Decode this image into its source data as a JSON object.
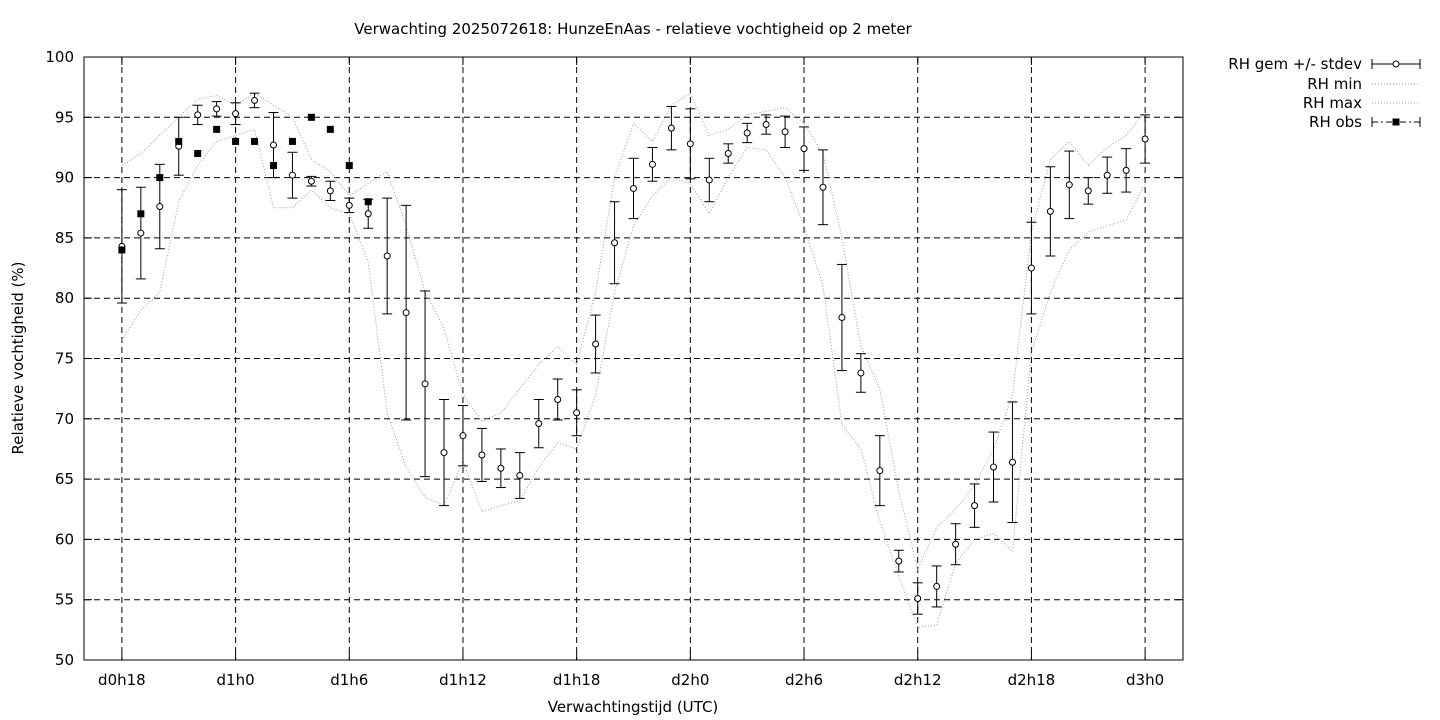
{
  "chart_data": {
    "type": "line",
    "title": "Verwachting 2025072618: HunzeEnAas - relatieve vochtigheid op 2 meter",
    "xlabel": "Verwachtingstijd (UTC)",
    "ylabel": "Relatieve vochtigheid (%)",
    "xlim": [
      -2,
      56
    ],
    "ylim": [
      50,
      100
    ],
    "yticks": [
      50,
      55,
      60,
      65,
      70,
      75,
      80,
      85,
      90,
      95,
      100
    ],
    "xticks": [
      {
        "x": 0,
        "label": "d0h18"
      },
      {
        "x": 6,
        "label": "d1h0"
      },
      {
        "x": 12,
        "label": "d1h6"
      },
      {
        "x": 18,
        "label": "d1h12"
      },
      {
        "x": 24,
        "label": "d1h18"
      },
      {
        "x": 30,
        "label": "d2h0"
      },
      {
        "x": 36,
        "label": "d2h6"
      },
      {
        "x": 42,
        "label": "d2h12"
      },
      {
        "x": 48,
        "label": "d2h18"
      },
      {
        "x": 54,
        "label": "d3h0"
      }
    ],
    "grid": true,
    "legend_position": "outside-top-right",
    "series": [
      {
        "name": "RH gem +/- stdev",
        "style": "errorbars",
        "x": [
          0,
          1,
          2,
          3,
          4,
          5,
          6,
          7,
          8,
          9,
          10,
          11,
          12,
          13,
          14,
          15,
          16,
          17,
          18,
          19,
          20,
          21,
          22,
          23,
          24,
          25,
          26,
          27,
          28,
          29,
          30,
          31,
          32,
          33,
          34,
          35,
          36,
          37,
          38,
          39,
          40,
          41,
          42,
          43,
          44,
          45,
          46,
          47,
          48,
          49,
          50,
          51,
          52,
          53,
          54
        ],
        "mean": [
          84.3,
          85.4,
          87.6,
          92.6,
          95.2,
          95.7,
          95.3,
          96.4,
          92.7,
          90.2,
          89.7,
          88.9,
          87.7,
          87.0,
          83.5,
          78.8,
          72.9,
          67.2,
          68.6,
          67.0,
          65.9,
          65.3,
          69.6,
          71.6,
          70.5,
          76.2,
          84.6,
          89.1,
          91.1,
          94.1,
          92.8,
          89.8,
          92.0,
          93.7,
          94.4,
          93.8,
          92.4,
          89.2,
          78.4,
          73.8,
          65.7,
          58.2,
          55.1,
          56.1,
          59.6,
          62.8,
          66.0,
          66.4,
          82.5,
          87.2,
          89.4,
          88.9,
          90.2,
          90.6,
          93.2
        ],
        "stdev": [
          4.7,
          3.8,
          3.5,
          2.4,
          0.8,
          0.6,
          0.9,
          0.6,
          2.7,
          1.9,
          0.4,
          0.8,
          0.6,
          1.2,
          4.8,
          8.9,
          7.7,
          4.4,
          2.5,
          2.2,
          1.6,
          1.9,
          2.0,
          1.7,
          1.9,
          2.4,
          3.4,
          2.5,
          1.4,
          1.8,
          2.9,
          1.8,
          0.8,
          0.8,
          0.8,
          1.3,
          1.8,
          3.1,
          4.4,
          1.6,
          2.9,
          0.9,
          1.3,
          1.7,
          1.7,
          1.8,
          2.9,
          5.0,
          3.8,
          3.7,
          2.8,
          1.1,
          1.5,
          1.8,
          2.0
        ]
      },
      {
        "name": "RH min",
        "style": "dotted",
        "x": [
          0,
          1,
          2,
          3,
          4,
          5,
          6,
          7,
          8,
          9,
          10,
          11,
          12,
          13,
          14,
          15,
          16,
          17,
          18,
          19,
          20,
          21,
          22,
          23,
          24,
          25,
          26,
          27,
          28,
          29,
          30,
          31,
          32,
          33,
          34,
          35,
          36,
          37,
          38,
          39,
          40,
          41,
          42,
          43,
          44,
          45,
          46,
          47,
          48,
          49,
          50,
          51,
          52,
          53,
          54
        ],
        "values": [
          76.5,
          79.0,
          80.5,
          88.0,
          91.0,
          93.0,
          93.5,
          94.0,
          87.5,
          87.5,
          89.0,
          87.5,
          87.0,
          83.0,
          70.5,
          66.0,
          63.5,
          62.8,
          66.5,
          62.3,
          62.8,
          63.2,
          66.0,
          68.0,
          67.5,
          72.0,
          80.5,
          86.0,
          88.5,
          90.0,
          89.5,
          87.0,
          90.0,
          92.5,
          92.3,
          90.0,
          86.0,
          81.0,
          69.5,
          67.5,
          61.5,
          57.0,
          52.7,
          52.9,
          58.0,
          60.0,
          60.5,
          59.0,
          75.5,
          80.5,
          84.0,
          85.5,
          86.0,
          86.5,
          89.5
        ]
      },
      {
        "name": "RH max",
        "style": "dotted",
        "x": [
          0,
          1,
          2,
          3,
          4,
          5,
          6,
          7,
          8,
          9,
          10,
          11,
          12,
          13,
          14,
          15,
          16,
          17,
          18,
          19,
          20,
          21,
          22,
          23,
          24,
          25,
          26,
          27,
          28,
          29,
          30,
          31,
          32,
          33,
          34,
          35,
          36,
          37,
          38,
          39,
          40,
          41,
          42,
          43,
          44,
          45,
          46,
          47,
          48,
          49,
          50,
          51,
          52,
          53,
          54
        ],
        "values": [
          91.0,
          92.0,
          93.5,
          95.0,
          96.5,
          96.8,
          96.0,
          97.0,
          96.0,
          95.0,
          91.5,
          90.5,
          88.5,
          89.5,
          90.5,
          86.0,
          80.5,
          77.5,
          72.0,
          69.8,
          70.5,
          72.5,
          74.5,
          76.0,
          74.5,
          80.5,
          90.0,
          94.5,
          93.0,
          96.0,
          97.0,
          93.5,
          94.0,
          95.2,
          95.5,
          95.8,
          94.5,
          92.0,
          85.0,
          76.0,
          72.5,
          64.0,
          57.5,
          61.0,
          62.5,
          64.5,
          67.5,
          72.0,
          85.5,
          91.5,
          93.0,
          91.0,
          92.5,
          93.5,
          95.5
        ]
      },
      {
        "name": "RH obs",
        "style": "points-filled-square",
        "x": [
          0,
          1,
          2,
          3,
          4,
          5,
          6,
          7,
          8,
          9,
          10,
          11,
          12,
          13
        ],
        "values": [
          84,
          87,
          90,
          93,
          92,
          94,
          93,
          93,
          91,
          93,
          95,
          94,
          91,
          88
        ]
      }
    ]
  }
}
